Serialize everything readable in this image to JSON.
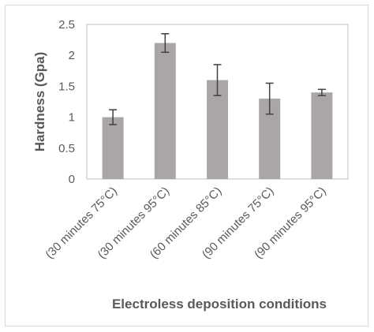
{
  "chart_data": {
    "type": "bar",
    "categories": [
      "(30 minutes 75°C)",
      "(30 minutes 95°C)",
      "(60 minutes 85°C)",
      "(90 minutes 75°C)",
      "(90 minutes 95°C)"
    ],
    "values": [
      1.0,
      2.2,
      1.6,
      1.3,
      1.4
    ],
    "error": [
      0.12,
      0.15,
      0.25,
      0.25,
      0.05
    ],
    "xlabel": "Electroless deposition conditions",
    "ylabel": "Hardness (Gpa)",
    "ylim": [
      0,
      2.5
    ],
    "yticks": [
      "0",
      "0.5",
      "1",
      "1.5",
      "2",
      "2.5"
    ],
    "bar_color": "#aba6a6",
    "error_color": "#404040",
    "grid": false
  }
}
